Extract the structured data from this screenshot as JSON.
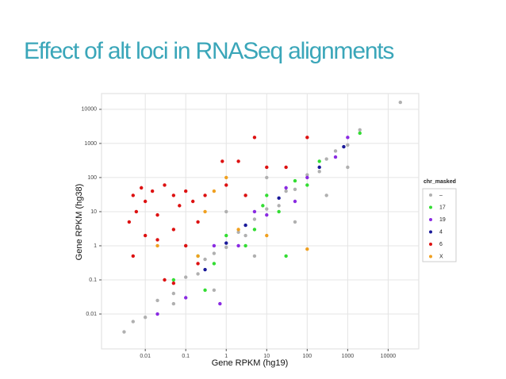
{
  "chart_data": {
    "type": "scatter",
    "title": "Effect of alt loci in RNASeq alignments",
    "x_label": "Gene RPKM (hg19)",
    "y_label": "Gene RPKM (hg38)",
    "log_x": true,
    "log_y": true,
    "grid": true,
    "xlim": [
      0.00083,
      57000
    ],
    "ylim": [
      0.00095,
      29000
    ],
    "xticks": [
      0.01,
      0.1,
      1,
      10,
      100,
      1000,
      10000
    ],
    "yticks": [
      0.01,
      0.1,
      1,
      10,
      100,
      1000,
      10000
    ],
    "legend_title": "chr_masked",
    "legend_position": "right",
    "series": [
      {
        "name": "–",
        "color": "#b0b0b0",
        "x": [
          0.003,
          0.005,
          0.01,
          0.02,
          0.05,
          0.1,
          0.2,
          0.3,
          0.5,
          1,
          2,
          3,
          5,
          10,
          20,
          30,
          50,
          100,
          200,
          300,
          500,
          1000,
          2000,
          20000,
          0.5,
          5,
          50,
          0.1,
          300,
          1,
          10,
          0.05,
          3,
          1000
        ],
        "values": [
          0.003,
          0.006,
          0.008,
          0.025,
          0.04,
          0.12,
          0.15,
          0.4,
          0.6,
          0.9,
          2.5,
          2,
          6,
          12,
          15,
          40,
          45,
          120,
          150,
          350,
          600,
          900,
          2500,
          16000,
          0.05,
          0.5,
          5,
          1,
          30,
          10,
          100,
          0.02,
          30,
          200
        ]
      },
      {
        "name": "17",
        "color": "#33dd33",
        "x": [
          0.2,
          0.5,
          1,
          3,
          0.3,
          5,
          10,
          20,
          50,
          100,
          30,
          0.05,
          200,
          2000,
          8
        ],
        "values": [
          0.5,
          0.3,
          2,
          1,
          0.05,
          3,
          30,
          10,
          80,
          60,
          0.5,
          0.1,
          300,
          2000,
          15
        ]
      },
      {
        "name": "19",
        "color": "#8a2be2",
        "x": [
          0.1,
          0.5,
          2,
          5,
          10,
          30,
          100,
          500,
          1000,
          0.02,
          0.7,
          50
        ],
        "values": [
          0.03,
          1,
          1,
          10,
          8,
          50,
          100,
          400,
          1500,
          0.01,
          0.02,
          20
        ]
      },
      {
        "name": "4",
        "color": "#1a1a9a",
        "x": [
          1,
          3,
          20,
          200,
          0.3,
          800
        ],
        "values": [
          1.2,
          4,
          25,
          200,
          0.2,
          800
        ]
      },
      {
        "name": "6",
        "color": "#dd1111",
        "x": [
          0.005,
          0.006,
          0.008,
          0.01,
          0.015,
          0.02,
          0.03,
          0.05,
          0.07,
          0.1,
          0.15,
          0.2,
          0.3,
          0.01,
          0.02,
          0.05,
          0.005,
          0.03,
          0.05,
          0.2,
          5,
          2,
          0.8,
          10,
          30,
          100,
          1,
          3,
          0.1,
          0.004
        ],
        "values": [
          30,
          10,
          50,
          20,
          40,
          8,
          60,
          30,
          15,
          40,
          20,
          5,
          30,
          2,
          1.5,
          3,
          0.5,
          0.1,
          0.08,
          0.3,
          1500,
          300,
          300,
          200,
          200,
          1500,
          60,
          30,
          1,
          5
        ]
      },
      {
        "name": "X",
        "color": "#f0a020",
        "x": [
          0.02,
          0.2,
          0.5,
          1,
          2,
          10,
          100,
          0.3
        ],
        "values": [
          1,
          0.5,
          40,
          100,
          3,
          2,
          0.8,
          10
        ]
      }
    ]
  }
}
